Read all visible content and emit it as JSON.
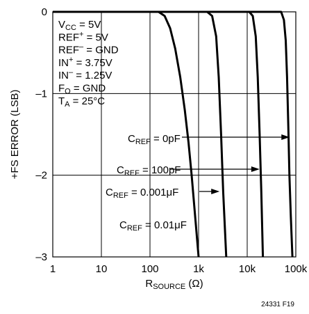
{
  "chart_data": {
    "type": "line",
    "x_scale": "log",
    "xlim": [
      1,
      100000
    ],
    "ylim": [
      -3,
      0
    ],
    "grid": true,
    "xlabel": {
      "main": "R",
      "sub": "SOURCE",
      "suffix": " (Ω)"
    },
    "ylabel": "+FS ERROR (LSB)",
    "x_ticks": [
      {
        "value": 1,
        "label": "1"
      },
      {
        "value": 10,
        "label": "10"
      },
      {
        "value": 100,
        "label": "100"
      },
      {
        "value": 1000,
        "label": "1k"
      },
      {
        "value": 10000,
        "label": "10k"
      },
      {
        "value": 100000,
        "label": "100k"
      }
    ],
    "y_ticks": [
      {
        "value": 0,
        "label": "0"
      },
      {
        "value": -1,
        "label": "–1"
      },
      {
        "value": -2,
        "label": "–2"
      },
      {
        "value": -3,
        "label": "–3"
      }
    ],
    "conditions": [
      {
        "main": "V",
        "sub": "CC",
        "sup": "",
        "rest": " = 5V"
      },
      {
        "main": "REF",
        "sub": "",
        "sup": "+",
        "rest": " = 5V"
      },
      {
        "main": "REF",
        "sub": "",
        "sup": "–",
        "rest": " = GND"
      },
      {
        "main": "IN",
        "sub": "",
        "sup": "+",
        "rest": " = 3.75V"
      },
      {
        "main": "IN",
        "sub": "",
        "sup": "–",
        "rest": " = 1.25V"
      },
      {
        "main": "F",
        "sub": "O",
        "sup": "",
        "rest": " = GND"
      },
      {
        "main": "T",
        "sub": "A",
        "sup": "",
        "rest": " = 25°C"
      }
    ],
    "series": [
      {
        "label_main": "C",
        "label_sub": "REF",
        "label_rest": " = 0pF",
        "points": [
          [
            1,
            0
          ],
          [
            50000,
            0
          ],
          [
            57000,
            -0.1
          ],
          [
            62000,
            -0.35
          ],
          [
            66000,
            -0.8
          ],
          [
            70000,
            -1.4
          ],
          [
            74000,
            -2.0
          ],
          [
            79000,
            -2.5
          ],
          [
            85000,
            -3.0
          ]
        ]
      },
      {
        "label_main": "C",
        "label_sub": "REF",
        "label_rest": " = 100pF",
        "points": [
          [
            1,
            0
          ],
          [
            11000,
            0
          ],
          [
            13000,
            -0.05
          ],
          [
            15000,
            -0.3
          ],
          [
            16500,
            -0.8
          ],
          [
            18000,
            -1.5
          ],
          [
            19500,
            -2.2
          ],
          [
            21000,
            -3.0
          ]
        ]
      },
      {
        "label_main": "C",
        "label_sub": "REF",
        "label_rest": " = 0.001μF",
        "points": [
          [
            1,
            0
          ],
          [
            1500,
            0
          ],
          [
            1900,
            -0.05
          ],
          [
            2300,
            -0.3
          ],
          [
            2600,
            -0.8
          ],
          [
            2900,
            -1.5
          ],
          [
            3200,
            -2.2
          ],
          [
            3700,
            -3.0
          ]
        ]
      },
      {
        "label_main": "C",
        "label_sub": "REF",
        "label_rest": " = 0.01μF",
        "points": [
          [
            1,
            0
          ],
          [
            150,
            0
          ],
          [
            200,
            -0.05
          ],
          [
            260,
            -0.2
          ],
          [
            330,
            -0.45
          ],
          [
            420,
            -0.8
          ],
          [
            520,
            -1.2
          ],
          [
            620,
            -1.6
          ],
          [
            720,
            -2.0
          ],
          [
            820,
            -2.4
          ],
          [
            920,
            -2.75
          ],
          [
            1000,
            -3.0
          ]
        ]
      }
    ],
    "annotations": [
      {
        "series": 0,
        "arrow_to_x": 75000
      },
      {
        "series": 1,
        "arrow_to_x": 18000
      },
      {
        "series": 2,
        "arrow_to_x": 2700
      },
      {
        "series": 3,
        "arrow_to_x": null
      }
    ],
    "figure_id": "24331 F19"
  }
}
